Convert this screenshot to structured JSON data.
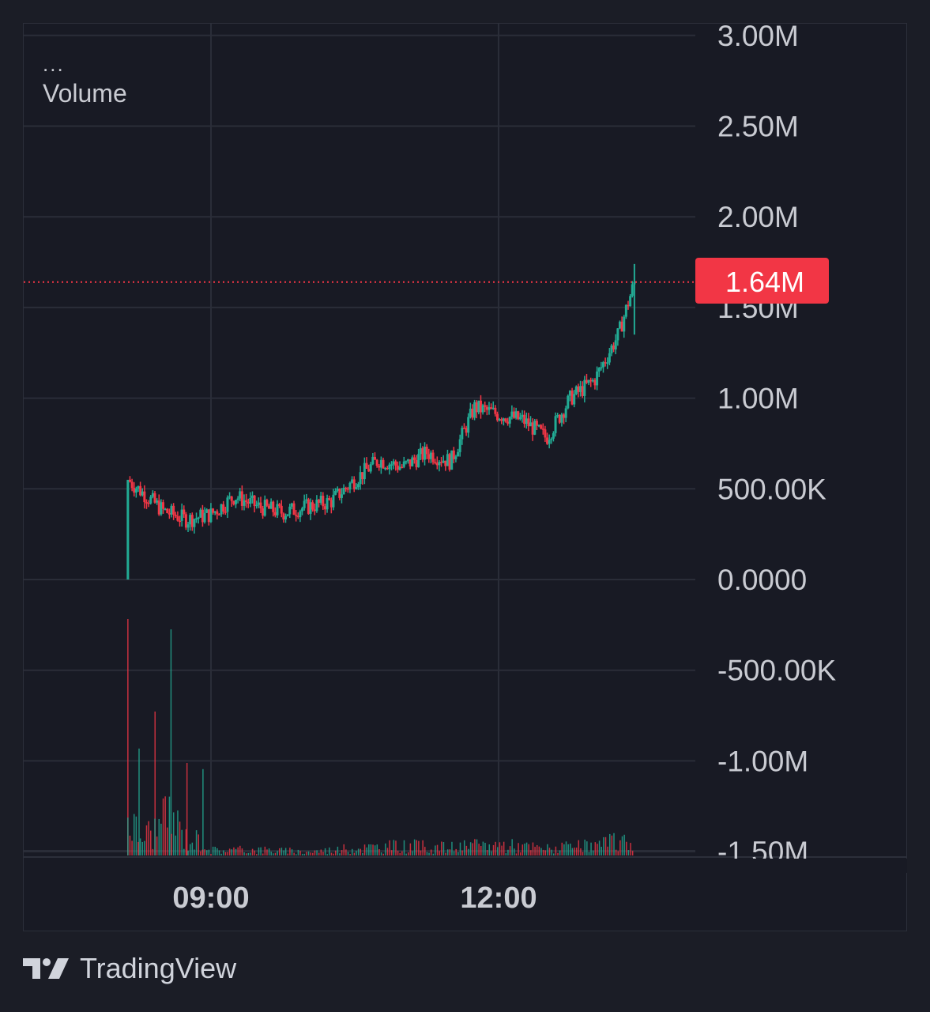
{
  "legend": {
    "menu": "...",
    "title": "Volume"
  },
  "price_label": {
    "text": "1.64M",
    "color": "#f23645"
  },
  "colors": {
    "up": "#22ab94",
    "down": "#f23645",
    "grid": "#2a2d38",
    "axis_text": "#c9cbd2"
  },
  "branding": {
    "logo_icon": "tradingview-logo-icon",
    "name": "TradingView"
  },
  "chart_data": {
    "type": "candlestick",
    "title": "Volume",
    "y_axis": {
      "ticks": [
        "3.00M",
        "2.50M",
        "2.00M",
        "1.50M",
        "1.00M",
        "500.00K",
        "0.0000",
        "-500.00K",
        "-1.00M",
        "-1.50M"
      ],
      "tick_values": [
        3000000,
        2500000,
        2000000,
        1500000,
        1000000,
        500000,
        0,
        -500000,
        -1000000,
        -1500000
      ],
      "range": [
        -1500000,
        3000000
      ]
    },
    "x_axis": {
      "ticks": [
        "09:00",
        "12:00"
      ],
      "tick_times": [
        "09:00",
        "12:00"
      ],
      "range": [
        "08:00",
        "14:30"
      ]
    },
    "last_value": 1640000,
    "grid": true,
    "price_line": {
      "value": 1640000,
      "style": "dotted"
    },
    "series": [
      {
        "name": "Volume",
        "kind": "candles",
        "values_at": [
          [
            "08:08",
            0
          ],
          [
            "08:08",
            550000
          ],
          [
            "08:30",
            380000
          ],
          [
            "08:45",
            330000
          ],
          [
            "09:00",
            360000
          ],
          [
            "09:15",
            460000
          ],
          [
            "09:30",
            400000
          ],
          [
            "09:45",
            370000
          ],
          [
            "10:00",
            400000
          ],
          [
            "10:15",
            430000
          ],
          [
            "10:30",
            550000
          ],
          [
            "10:45",
            660000
          ],
          [
            "11:00",
            620000
          ],
          [
            "11:15",
            700000
          ],
          [
            "11:30",
            650000
          ],
          [
            "11:45",
            950000
          ],
          [
            "12:00",
            910000
          ],
          [
            "12:15",
            880000
          ],
          [
            "12:30",
            780000
          ],
          [
            "12:45",
            1000000
          ],
          [
            "13:00",
            1100000
          ],
          [
            "13:15",
            1350000
          ],
          [
            "13:25",
            1640000
          ]
        ]
      },
      {
        "name": "Volume",
        "kind": "histogram",
        "values_at": [
          [
            "08:08",
            1150000
          ],
          [
            "08:15",
            520000
          ],
          [
            "08:25",
            700000
          ],
          [
            "08:35",
            1100000
          ],
          [
            "08:45",
            450000
          ],
          [
            "08:55",
            420000
          ],
          [
            "09:00",
            150000
          ],
          [
            "09:30",
            160000
          ],
          [
            "10:00",
            100000
          ],
          [
            "10:30",
            200000
          ],
          [
            "11:00",
            260000
          ],
          [
            "11:30",
            220000
          ],
          [
            "12:00",
            300000
          ],
          [
            "12:30",
            190000
          ],
          [
            "13:00",
            260000
          ],
          [
            "13:15",
            380000
          ],
          [
            "13:25",
            380000
          ]
        ]
      }
    ]
  }
}
